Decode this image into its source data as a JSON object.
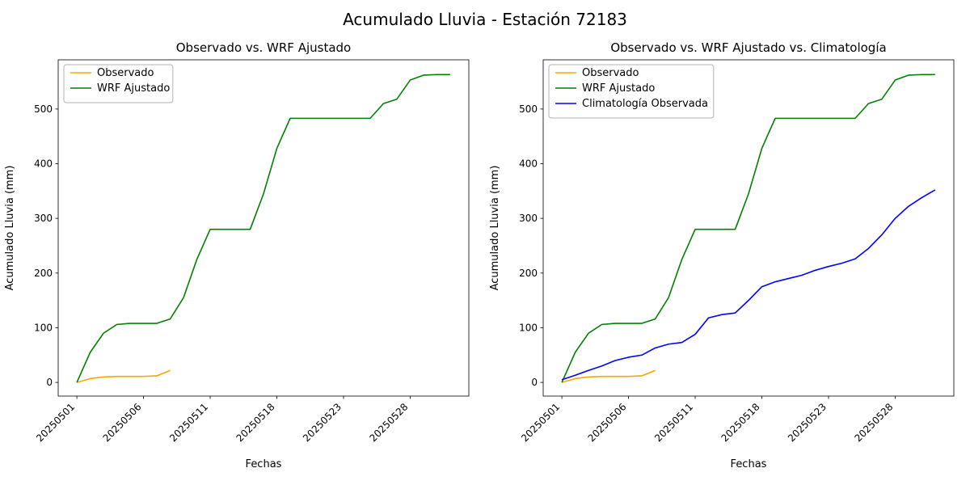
{
  "figure": {
    "title": "Acumulado Lluvia - Estación 72183",
    "background": "#ffffff"
  },
  "colors": {
    "observado": "#ffa500",
    "wrf_ajustado": "#008000",
    "climatologia": "#0000ff",
    "axis": "#000000",
    "legend_border": "#b3b3b3"
  },
  "chart_data": [
    {
      "type": "line",
      "title": "Observado vs. WRF Ajustado",
      "xlabel": "Fechas",
      "ylabel": "Acumulado Lluvia (mm)",
      "grid": false,
      "legend_position": "upper-left",
      "ylim": [
        -25,
        590
      ],
      "yticks": [
        0,
        100,
        200,
        300,
        400,
        500
      ],
      "xtick_positions": [
        0,
        5,
        10,
        15,
        20,
        25
      ],
      "categories": [
        "20250501",
        "20250502",
        "20250503",
        "20250504",
        "20250505",
        "20250506",
        "20250507",
        "20250508",
        "20250509",
        "20250510",
        "20250511",
        "20250514",
        "20250515",
        "20250516",
        "20250517",
        "20250518",
        "20250519",
        "20250520",
        "20250521",
        "20250522",
        "20250523",
        "20250524",
        "20250525",
        "20250526",
        "20250527",
        "20250528",
        "20250529",
        "20250530",
        "20250531"
      ],
      "series": [
        {
          "name": "Observado",
          "key": "observado",
          "color": "#ffa500",
          "values": [
            0,
            7,
            10,
            11,
            11,
            11,
            12,
            22
          ]
        },
        {
          "name": "WRF Ajustado",
          "key": "wrf-ajustado",
          "color": "#008000",
          "values": [
            0,
            55,
            90,
            106,
            108,
            108,
            108,
            116,
            155,
            225,
            280,
            280,
            280,
            280,
            345,
            428,
            483,
            483,
            483,
            483,
            483,
            483,
            483,
            510,
            518,
            553,
            562,
            563,
            563
          ]
        }
      ]
    },
    {
      "type": "line",
      "title": "Observado vs. WRF Ajustado vs. Climatología",
      "xlabel": "Fechas",
      "ylabel": "Acumulado Lluvia (mm)",
      "grid": false,
      "legend_position": "upper-left",
      "ylim": [
        -25,
        590
      ],
      "yticks": [
        0,
        100,
        200,
        300,
        400,
        500
      ],
      "xtick_positions": [
        0,
        5,
        10,
        15,
        20,
        25
      ],
      "categories": [
        "20250501",
        "20250502",
        "20250503",
        "20250504",
        "20250505",
        "20250506",
        "20250507",
        "20250508",
        "20250509",
        "20250510",
        "20250511",
        "20250514",
        "20250515",
        "20250516",
        "20250517",
        "20250518",
        "20250519",
        "20250520",
        "20250521",
        "20250522",
        "20250523",
        "20250524",
        "20250525",
        "20250526",
        "20250527",
        "20250528",
        "20250529",
        "20250530",
        "20250531"
      ],
      "series": [
        {
          "name": "Observado",
          "key": "observado",
          "color": "#ffa500",
          "values": [
            0,
            7,
            10,
            11,
            11,
            11,
            12,
            22
          ]
        },
        {
          "name": "WRF Ajustado",
          "key": "wrf-ajustado",
          "color": "#008000",
          "values": [
            0,
            55,
            90,
            106,
            108,
            108,
            108,
            116,
            155,
            225,
            280,
            280,
            280,
            280,
            345,
            428,
            483,
            483,
            483,
            483,
            483,
            483,
            483,
            510,
            518,
            553,
            562,
            563,
            563
          ]
        },
        {
          "name": "Climatología Observada",
          "key": "climatologia-observada",
          "color": "#0000ff",
          "values": [
            5,
            13,
            22,
            30,
            40,
            46,
            50,
            63,
            70,
            73,
            88,
            118,
            124,
            127,
            150,
            175,
            184,
            190,
            196,
            205,
            212,
            218,
            226,
            245,
            270,
            300,
            322,
            338,
            352
          ]
        }
      ]
    }
  ]
}
